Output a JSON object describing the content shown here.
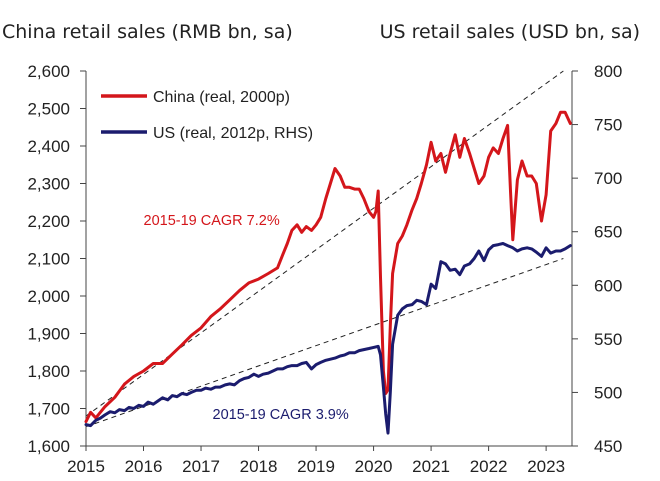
{
  "chart_data": {
    "type": "line",
    "left_axis_title": "China retail sales (RMB bn, sa)",
    "right_axis_title": "US retail sales (USD bn, sa)",
    "x_ticks": [
      "2015",
      "2016",
      "2017",
      "2018",
      "2019",
      "2020",
      "2021",
      "2022",
      "2023"
    ],
    "xlim": [
      2015.0,
      2023.45
    ],
    "left_axis": {
      "ylim": [
        1600,
        2600
      ],
      "ticks": [
        "1,600",
        "1,700",
        "1,800",
        "1,900",
        "2,000",
        "2,100",
        "2,200",
        "2,300",
        "2,400",
        "2,500",
        "2,600"
      ]
    },
    "right_axis": {
      "ylim": [
        450,
        800
      ],
      "ticks": [
        "450",
        "500",
        "550",
        "600",
        "650",
        "700",
        "750",
        "800"
      ]
    },
    "colors": {
      "china": "#d4161b",
      "us": "#1b1c6e",
      "trend": "#222222"
    },
    "series": [
      {
        "key": "china",
        "name": "China (real, 2000p)",
        "axis": "left",
        "points": [
          [
            2015.0,
            1665
          ],
          [
            2015.08,
            1690
          ],
          [
            2015.17,
            1675
          ],
          [
            2015.33,
            1705
          ],
          [
            2015.5,
            1730
          ],
          [
            2015.67,
            1765
          ],
          [
            2015.83,
            1785
          ],
          [
            2016.0,
            1800
          ],
          [
            2016.17,
            1820
          ],
          [
            2016.33,
            1820
          ],
          [
            2016.5,
            1845
          ],
          [
            2016.67,
            1870
          ],
          [
            2016.83,
            1895
          ],
          [
            2017.0,
            1915
          ],
          [
            2017.17,
            1945
          ],
          [
            2017.33,
            1965
          ],
          [
            2017.5,
            1990
          ],
          [
            2017.67,
            2015
          ],
          [
            2017.83,
            2035
          ],
          [
            2018.0,
            2045
          ],
          [
            2018.17,
            2060
          ],
          [
            2018.33,
            2075
          ],
          [
            2018.42,
            2110
          ],
          [
            2018.5,
            2140
          ],
          [
            2018.58,
            2175
          ],
          [
            2018.67,
            2190
          ],
          [
            2018.75,
            2170
          ],
          [
            2018.83,
            2185
          ],
          [
            2018.92,
            2175
          ],
          [
            2019.0,
            2190
          ],
          [
            2019.08,
            2210
          ],
          [
            2019.17,
            2260
          ],
          [
            2019.25,
            2300
          ],
          [
            2019.33,
            2340
          ],
          [
            2019.42,
            2320
          ],
          [
            2019.5,
            2290
          ],
          [
            2019.58,
            2290
          ],
          [
            2019.67,
            2285
          ],
          [
            2019.75,
            2285
          ],
          [
            2019.83,
            2260
          ],
          [
            2019.92,
            2225
          ],
          [
            2020.0,
            2210
          ],
          [
            2020.04,
            2225
          ],
          [
            2020.08,
            2280
          ],
          [
            2020.12,
            2050
          ],
          [
            2020.17,
            1800
          ],
          [
            2020.21,
            1740
          ],
          [
            2020.25,
            1750
          ],
          [
            2020.29,
            1920
          ],
          [
            2020.33,
            2060
          ],
          [
            2020.42,
            2140
          ],
          [
            2020.5,
            2160
          ],
          [
            2020.58,
            2190
          ],
          [
            2020.67,
            2230
          ],
          [
            2020.75,
            2260
          ],
          [
            2020.83,
            2300
          ],
          [
            2020.92,
            2350
          ],
          [
            2021.0,
            2410
          ],
          [
            2021.08,
            2360
          ],
          [
            2021.17,
            2380
          ],
          [
            2021.25,
            2330
          ],
          [
            2021.33,
            2380
          ],
          [
            2021.42,
            2430
          ],
          [
            2021.5,
            2370
          ],
          [
            2021.58,
            2420
          ],
          [
            2021.67,
            2380
          ],
          [
            2021.75,
            2340
          ],
          [
            2021.83,
            2300
          ],
          [
            2021.92,
            2320
          ],
          [
            2022.0,
            2370
          ],
          [
            2022.08,
            2395
          ],
          [
            2022.17,
            2380
          ],
          [
            2022.25,
            2420
          ],
          [
            2022.33,
            2455
          ],
          [
            2022.38,
            2280
          ],
          [
            2022.42,
            2150
          ],
          [
            2022.5,
            2310
          ],
          [
            2022.58,
            2360
          ],
          [
            2022.67,
            2320
          ],
          [
            2022.75,
            2320
          ],
          [
            2022.83,
            2300
          ],
          [
            2022.92,
            2200
          ],
          [
            2023.0,
            2270
          ],
          [
            2023.08,
            2440
          ],
          [
            2023.17,
            2460
          ],
          [
            2023.25,
            2490
          ],
          [
            2023.33,
            2490
          ],
          [
            2023.42,
            2460
          ]
        ]
      },
      {
        "key": "us",
        "name": "US (real, 2012p, RHS)",
        "axis": "right",
        "points": [
          [
            2015.0,
            470
          ],
          [
            2015.08,
            469
          ],
          [
            2015.17,
            474
          ],
          [
            2015.25,
            476
          ],
          [
            2015.33,
            479
          ],
          [
            2015.42,
            482
          ],
          [
            2015.5,
            481
          ],
          [
            2015.58,
            484
          ],
          [
            2015.67,
            483
          ],
          [
            2015.75,
            486
          ],
          [
            2015.83,
            485
          ],
          [
            2015.92,
            488
          ],
          [
            2016.0,
            487
          ],
          [
            2016.08,
            491
          ],
          [
            2016.17,
            489
          ],
          [
            2016.25,
            492
          ],
          [
            2016.33,
            495
          ],
          [
            2016.42,
            493
          ],
          [
            2016.5,
            497
          ],
          [
            2016.58,
            496
          ],
          [
            2016.67,
            499
          ],
          [
            2016.75,
            498
          ],
          [
            2016.83,
            500
          ],
          [
            2016.92,
            502
          ],
          [
            2017.0,
            502
          ],
          [
            2017.08,
            504
          ],
          [
            2017.17,
            503
          ],
          [
            2017.25,
            505
          ],
          [
            2017.33,
            505
          ],
          [
            2017.42,
            507
          ],
          [
            2017.5,
            508
          ],
          [
            2017.58,
            507
          ],
          [
            2017.67,
            511
          ],
          [
            2017.75,
            513
          ],
          [
            2017.83,
            514
          ],
          [
            2017.92,
            517
          ],
          [
            2018.0,
            515
          ],
          [
            2018.08,
            517
          ],
          [
            2018.17,
            518
          ],
          [
            2018.25,
            520
          ],
          [
            2018.33,
            522
          ],
          [
            2018.42,
            522
          ],
          [
            2018.5,
            524
          ],
          [
            2018.58,
            525
          ],
          [
            2018.67,
            525
          ],
          [
            2018.75,
            527
          ],
          [
            2018.83,
            528
          ],
          [
            2018.92,
            522
          ],
          [
            2019.0,
            526
          ],
          [
            2019.08,
            528
          ],
          [
            2019.17,
            530
          ],
          [
            2019.25,
            531
          ],
          [
            2019.33,
            532
          ],
          [
            2019.42,
            534
          ],
          [
            2019.5,
            535
          ],
          [
            2019.58,
            537
          ],
          [
            2019.67,
            537
          ],
          [
            2019.75,
            539
          ],
          [
            2019.83,
            540
          ],
          [
            2019.92,
            541
          ],
          [
            2020.0,
            542
          ],
          [
            2020.08,
            543
          ],
          [
            2020.12,
            535
          ],
          [
            2020.17,
            505
          ],
          [
            2020.21,
            480
          ],
          [
            2020.25,
            462
          ],
          [
            2020.29,
            500
          ],
          [
            2020.33,
            545
          ],
          [
            2020.42,
            572
          ],
          [
            2020.5,
            578
          ],
          [
            2020.58,
            581
          ],
          [
            2020.67,
            582
          ],
          [
            2020.75,
            586
          ],
          [
            2020.83,
            585
          ],
          [
            2020.92,
            582
          ],
          [
            2021.0,
            601
          ],
          [
            2021.08,
            597
          ],
          [
            2021.17,
            622
          ],
          [
            2021.25,
            620
          ],
          [
            2021.33,
            614
          ],
          [
            2021.42,
            615
          ],
          [
            2021.5,
            610
          ],
          [
            2021.58,
            618
          ],
          [
            2021.67,
            620
          ],
          [
            2021.75,
            625
          ],
          [
            2021.83,
            632
          ],
          [
            2021.92,
            623
          ],
          [
            2022.0,
            633
          ],
          [
            2022.08,
            637
          ],
          [
            2022.17,
            638
          ],
          [
            2022.25,
            639
          ],
          [
            2022.33,
            637
          ],
          [
            2022.42,
            635
          ],
          [
            2022.5,
            632
          ],
          [
            2022.58,
            634
          ],
          [
            2022.67,
            635
          ],
          [
            2022.75,
            634
          ],
          [
            2022.83,
            631
          ],
          [
            2022.92,
            627
          ],
          [
            2023.0,
            635
          ],
          [
            2023.08,
            630
          ],
          [
            2023.17,
            632
          ],
          [
            2023.25,
            632
          ],
          [
            2023.33,
            634
          ],
          [
            2023.42,
            637
          ]
        ]
      }
    ],
    "trendlines": [
      {
        "axis": "left",
        "from": [
          2015.0,
          1680
        ],
        "to": [
          2023.3,
          2600
        ]
      },
      {
        "axis": "right",
        "from": [
          2015.0,
          468
        ],
        "to": [
          2023.3,
          625
        ]
      }
    ],
    "annotations": [
      {
        "text": "2015-19 CAGR 7.2%",
        "x": 2016.0,
        "y_left": 2190,
        "color": "#d4161b"
      },
      {
        "text": "2015-19 CAGR 3.9%",
        "x": 2017.2,
        "y_left": 1672,
        "color": "#1b1c6e"
      }
    ],
    "legend": "top-left",
    "grid": false
  }
}
